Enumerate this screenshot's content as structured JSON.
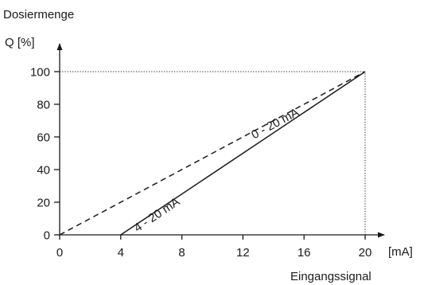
{
  "chart_data": {
    "type": "line",
    "title": "Dosiermenge",
    "ylabel": "Q [%]",
    "xunit": "[mA]",
    "xlabel": "Eingangssignal",
    "xlim": [
      0,
      20
    ],
    "ylim": [
      0,
      100
    ],
    "xticks": [
      0,
      4,
      8,
      12,
      16,
      20
    ],
    "yticks": [
      0,
      20,
      40,
      60,
      80,
      100
    ],
    "grid": false,
    "reference_lines": [
      {
        "from": {
          "x": 0,
          "y": 100
        },
        "to": {
          "x": 20,
          "y": 100
        },
        "style": "dotted"
      },
      {
        "from": {
          "x": 20,
          "y": 0
        },
        "to": {
          "x": 20,
          "y": 100
        },
        "style": "dotted"
      }
    ],
    "series": [
      {
        "name": "0 - 20 mA",
        "style": "dashed",
        "x": [
          0,
          20
        ],
        "y": [
          0,
          100
        ]
      },
      {
        "name": "4 - 20 mA",
        "style": "solid",
        "x": [
          4,
          20
        ],
        "y": [
          0,
          100
        ]
      }
    ],
    "colors": {
      "line": "#1a1a1a",
      "background": "#ffffff"
    }
  }
}
